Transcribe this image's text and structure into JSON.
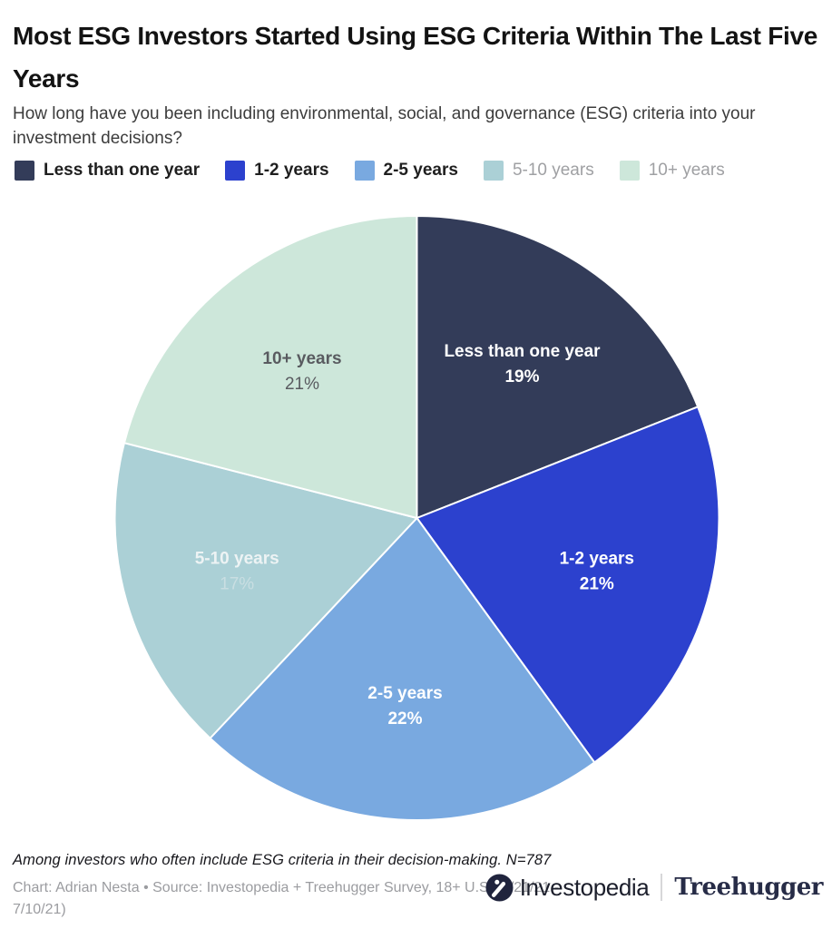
{
  "header": {
    "title": "Most ESG Investors Started Using ESG Criteria Within The Last Five Years",
    "subtitle": "How long have you been including environmental, social, and governance (ESG) criteria into your investment decisions?"
  },
  "chart_data": {
    "type": "pie",
    "title": "Most ESG Investors Started Using ESG Criteria Within The Last Five Years",
    "question": "How long have you been including environmental, social, and governance (ESG) criteria into your investment decisions?",
    "unit": "%",
    "start_angle_deg": 0,
    "direction": "clockwise",
    "legend_position": "top",
    "categories": [
      "Less than one year",
      "1-2 years",
      "2-5 years",
      "5-10 years",
      "10+ years"
    ],
    "values": [
      19,
      21,
      22,
      17,
      21
    ],
    "slices": [
      {
        "label": "Less than one year",
        "value": 19,
        "pct_text": "19%",
        "color": "#333C59",
        "label_color": "#ffffff",
        "pct_color": "#ffffff",
        "pct_bold": true,
        "legend_muted": false
      },
      {
        "label": "1-2 years",
        "value": 21,
        "pct_text": "21%",
        "color": "#2C41CE",
        "label_color": "#ffffff",
        "pct_color": "#ffffff",
        "pct_bold": true,
        "legend_muted": false
      },
      {
        "label": "2-5 years",
        "value": 22,
        "pct_text": "22%",
        "color": "#79A9E0",
        "label_color": "#ffffff",
        "pct_color": "#ffffff",
        "pct_bold": true,
        "legend_muted": false
      },
      {
        "label": "5-10 years",
        "value": 17,
        "pct_text": "17%",
        "color": "#ABD0D6",
        "label_color": "#edf3f4",
        "pct_color": "#c9dee2",
        "pct_bold": false,
        "legend_muted": true
      },
      {
        "label": "10+ years",
        "value": 21,
        "pct_text": "21%",
        "color": "#CDE7DA",
        "label_color": "#595b60",
        "pct_color": "#595b60",
        "pct_bold": false,
        "legend_muted": true
      }
    ],
    "slice_divider_color": "#ffffff"
  },
  "footer": {
    "note": "Among investors who often include ESG criteria in their decision-making. N=787",
    "credit": "Chart: Adrian Nesta • Source: Investopedia + Treehugger Survey, 18+ U.S. (6/21/21 - 7/10/21)",
    "logos": {
      "investopedia_label": "Investopedia",
      "treehugger_label": "Treehugger",
      "investopedia_icon_color": "#20243d"
    }
  }
}
